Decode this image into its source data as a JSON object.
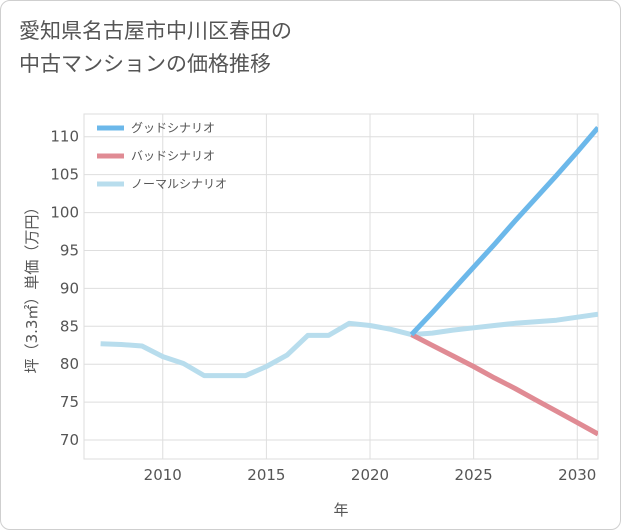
{
  "title_lines": [
    "愛知県名古屋市中川区春田の",
    "中古マンションの価格推移"
  ],
  "chart_data": {
    "type": "line",
    "xlabel": "年",
    "ylabel": "坪（3.3㎡）単価（万円）",
    "xlim": [
      2006.2,
      2031
    ],
    "ylim": [
      67.5,
      113
    ],
    "x_ticks": [
      2010,
      2015,
      2020,
      2025,
      2030
    ],
    "y_ticks": [
      70,
      75,
      80,
      85,
      90,
      95,
      100,
      105,
      110
    ],
    "grid": true,
    "legend_position": "top-left",
    "series": [
      {
        "name": "グッドシナリオ",
        "color": "#6cb8ea",
        "x": [
          2022,
          2023,
          2024,
          2025,
          2026,
          2027,
          2028,
          2029,
          2030,
          2031
        ],
        "y": [
          83.9,
          86.8,
          89.8,
          92.8,
          95.8,
          98.9,
          101.9,
          104.9,
          108.0,
          111.2
        ]
      },
      {
        "name": "バッドシナリオ",
        "color": "#e08b94",
        "x": [
          2022,
          2023,
          2024,
          2025,
          2026,
          2027,
          2028,
          2029,
          2030,
          2031
        ],
        "y": [
          83.9,
          82.5,
          81.1,
          79.7,
          78.2,
          76.8,
          75.3,
          73.8,
          72.3,
          70.8
        ]
      },
      {
        "name": "ノーマルシナリオ",
        "color": "#b8dded",
        "x": [
          2007,
          2008,
          2009,
          2010,
          2011,
          2012,
          2013,
          2014,
          2015,
          2016,
          2017,
          2018,
          2019,
          2020,
          2021,
          2022,
          2023,
          2024,
          2025,
          2026,
          2027,
          2028,
          2029,
          2030,
          2031
        ],
        "y": [
          82.7,
          82.6,
          82.4,
          81.0,
          80.1,
          78.5,
          78.5,
          78.5,
          79.7,
          81.2,
          83.8,
          83.8,
          85.4,
          85.1,
          84.6,
          83.9,
          84.1,
          84.5,
          84.8,
          85.1,
          85.4,
          85.6,
          85.8,
          86.2,
          86.6
        ]
      }
    ]
  }
}
